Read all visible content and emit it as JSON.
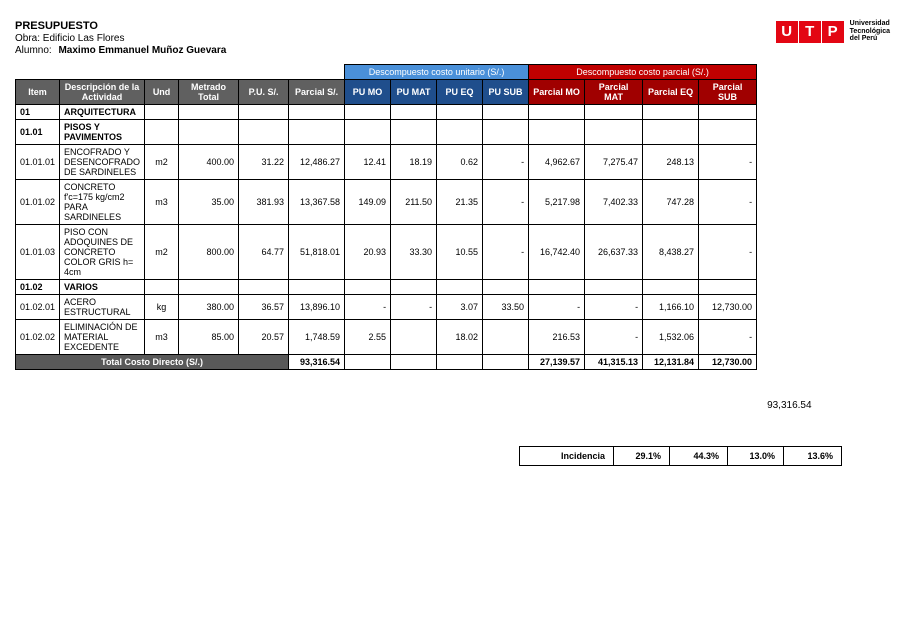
{
  "header": {
    "title": "PRESUPUESTO",
    "obra": "Obra: Edificio Las Flores",
    "alumno_label": "Alumno:",
    "alumno_name": "Maximo Emmanuel Muñoz Guevara"
  },
  "logo": {
    "letters": [
      "U",
      "T",
      "P"
    ],
    "line1": "Universidad",
    "line2": "Tecnológica",
    "line3": "del Perú"
  },
  "table": {
    "group_headers": {
      "unitario": "Descompuesto costo unitario (S/.)",
      "parcial": "Descompuesto costo parcial (S/.)"
    },
    "col_headers": {
      "item": "Item",
      "desc": "Descripción de la Actividad",
      "und": "Und",
      "metrado": "Metrado Total",
      "pu": "P.U. S/.",
      "parcial": "Parcial S/.",
      "pumo": "PU MO",
      "pumat": "PU  MAT",
      "pueq": "PU EQ",
      "pusub": "PU SUB",
      "pmo": "Parcial MO",
      "pmat": "Parcial  MAT",
      "peq": "Parcial EQ",
      "psub": "Parcial SUB"
    },
    "rows": [
      {
        "item": "01",
        "desc": "ARQUITECTURA",
        "und": "",
        "metrado": "",
        "pu": "",
        "parcial": "",
        "pumo": "",
        "pumat": "",
        "pueq": "",
        "pusub": "",
        "pmo": "",
        "pmat": "",
        "peq": "",
        "psub": "",
        "bold": true
      },
      {
        "item": "01.01",
        "desc": "PISOS Y PAVIMENTOS",
        "und": "",
        "metrado": "",
        "pu": "",
        "parcial": "",
        "pumo": "",
        "pumat": "",
        "pueq": "",
        "pusub": "",
        "pmo": "",
        "pmat": "",
        "peq": "",
        "psub": "",
        "bold": true
      },
      {
        "item": "01.01.01",
        "desc": "ENCOFRADO Y DESENCOFRADO DE SARDINELES",
        "und": "m2",
        "metrado": "400.00",
        "pu": "31.22",
        "parcial": "12,486.27",
        "pumo": "12.41",
        "pumat": "18.19",
        "pueq": "0.62",
        "pusub": "-",
        "pmo": "4,962.67",
        "pmat": "7,275.47",
        "peq": "248.13",
        "psub": "-",
        "bold": false
      },
      {
        "item": "01.01.02",
        "desc": "CONCRETO f'c=175 kg/cm2 PARA SARDINELES",
        "und": "m3",
        "metrado": "35.00",
        "pu": "381.93",
        "parcial": "13,367.58",
        "pumo": "149.09",
        "pumat": "211.50",
        "pueq": "21.35",
        "pusub": "-",
        "pmo": "5,217.98",
        "pmat": "7,402.33",
        "peq": "747.28",
        "psub": "-",
        "bold": false
      },
      {
        "item": "01.01.03",
        "desc": "PISO CON ADOQUINES DE CONCRETO COLOR GRIS h= 4cm",
        "und": "m2",
        "metrado": "800.00",
        "pu": "64.77",
        "parcial": "51,818.01",
        "pumo": "20.93",
        "pumat": "33.30",
        "pueq": "10.55",
        "pusub": "-",
        "pmo": "16,742.40",
        "pmat": "26,637.33",
        "peq": "8,438.27",
        "psub": "-",
        "bold": false
      },
      {
        "item": "01.02",
        "desc": "VARIOS",
        "und": "",
        "metrado": "",
        "pu": "",
        "parcial": "",
        "pumo": "",
        "pumat": "",
        "pueq": "",
        "pusub": "",
        "pmo": "",
        "pmat": "",
        "peq": "",
        "psub": "",
        "bold": true
      },
      {
        "item": "01.02.01",
        "desc": "ACERO ESTRUCTURAL",
        "und": "kg",
        "metrado": "380.00",
        "pu": "36.57",
        "parcial": "13,896.10",
        "pumo": "-",
        "pumat": "-",
        "pueq": "3.07",
        "pusub": "33.50",
        "pmo": "-",
        "pmat": "-",
        "peq": "1,166.10",
        "psub": "12,730.00",
        "bold": false
      },
      {
        "item": "01.02.02",
        "desc": "ELIMINACIÓN DE MATERIAL EXCEDENTE",
        "und": "m3",
        "metrado": "85.00",
        "pu": "20.57",
        "parcial": "1,748.59",
        "pumo": "2.55",
        "pumat": "",
        "pueq": "18.02",
        "pusub": "",
        "pmo": "216.53",
        "pmat": "-",
        "peq": "1,532.06",
        "psub": "-",
        "bold": false
      }
    ],
    "total": {
      "label": "Total Costo Directo (S/.)",
      "parcial": "93,316.54",
      "pmo": "27,139.57",
      "pmat": "41,315.13",
      "peq": "12,131.84",
      "psub": "12,730.00",
      "side": "93,316.54"
    },
    "incidencia": {
      "label": "Incidencia",
      "pmo": "29.1%",
      "pmat": "44.3%",
      "peq": "13.0%",
      "psub": "13.6%"
    }
  },
  "widths": {
    "item": 44,
    "desc": 82,
    "und": 34,
    "metrado": 60,
    "pu": 50,
    "parcial_col": 56,
    "pumo": 46,
    "pumat": 46,
    "pueq": 46,
    "pusub": 46,
    "pmo": 56,
    "pmat": 58,
    "peq": 56,
    "psub": 58
  },
  "colors": {
    "gray": "#606060",
    "blue_light": "#4a90d9",
    "blue_dark": "#1f4e8c",
    "red_light": "#c00000",
    "red_dark": "#a00000",
    "total_gray": "#595959"
  }
}
